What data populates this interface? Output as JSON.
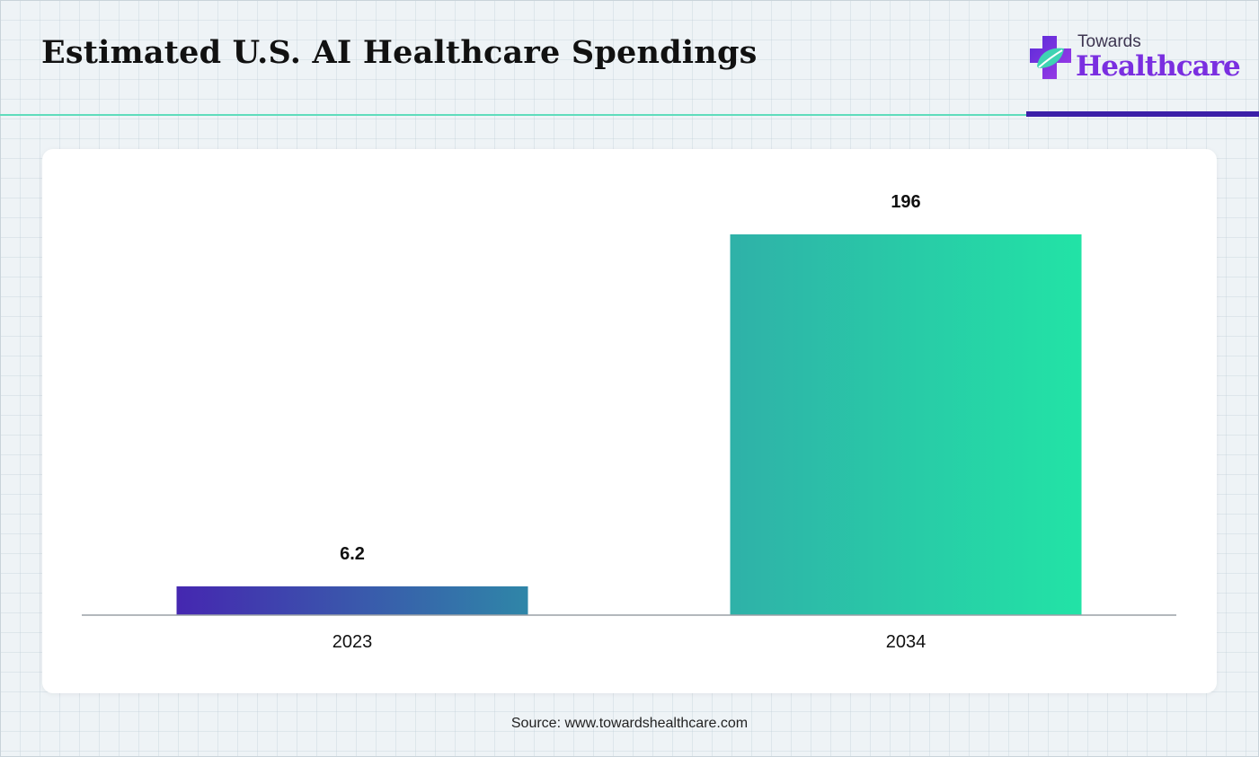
{
  "title": "Estimated U.S. AI Healthcare Spendings",
  "logo": {
    "top_text": "Towards",
    "main_text": "Healthcare"
  },
  "source": "Source: www.towardshealthcare.com",
  "colors": {
    "bar_2023_start": "#4527b0",
    "bar_2023_end": "#2f86a8",
    "bar_2034_start": "#2fb1a8",
    "bar_2034_end": "#22e3a6",
    "accent_green": "#5fdcbc",
    "accent_purple": "#3b1fa8"
  },
  "chart_data": {
    "type": "bar",
    "title": "Estimated U.S. AI Healthcare Spendings",
    "categories": [
      "2023",
      "2034"
    ],
    "values": [
      6.2,
      196
    ],
    "value_labels": [
      "6.2",
      "196"
    ],
    "xlabel": "",
    "ylabel": "",
    "ylim": [
      0,
      220
    ],
    "grid": false,
    "legend": "none"
  }
}
